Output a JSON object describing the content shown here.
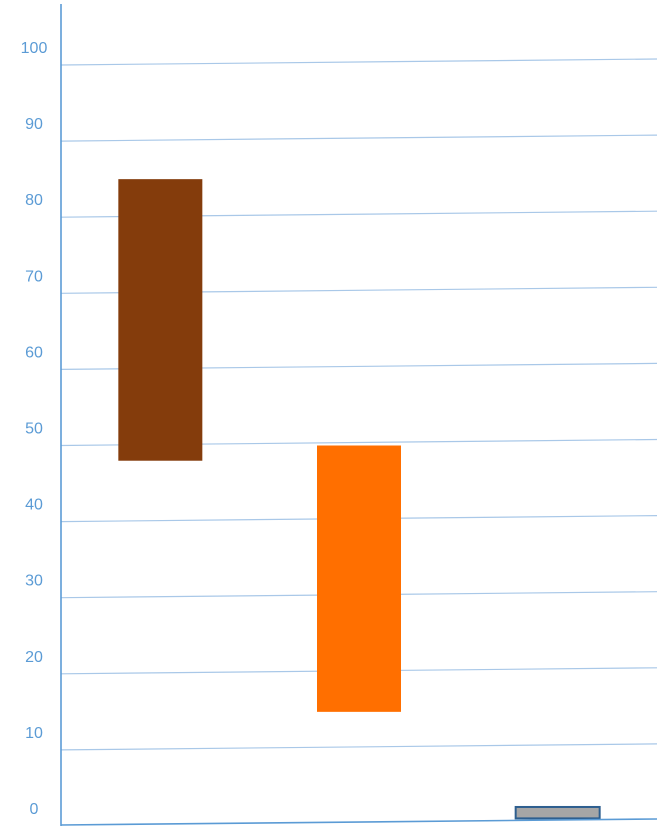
{
  "chart_data": {
    "type": "bar",
    "subtype": "floating",
    "title": "",
    "xlabel": "",
    "ylabel": "",
    "ylim": [
      0,
      100
    ],
    "y_ticks": [
      0,
      10,
      20,
      30,
      40,
      50,
      60,
      70,
      80,
      90,
      100
    ],
    "grid": true,
    "legend": "none",
    "bars": [
      {
        "low": 48,
        "high": 85,
        "color": "#843c0c"
      },
      {
        "low": 15,
        "high": 50,
        "color": "#ff6f00"
      },
      {
        "low": 1,
        "high": 2.5,
        "color": "#a6a6a6",
        "border": "#2e5f8f"
      }
    ],
    "colors": {
      "axis": "#5b9bd5",
      "grid": "#a9c8e8",
      "tick_text": "#5b9bd5"
    }
  }
}
